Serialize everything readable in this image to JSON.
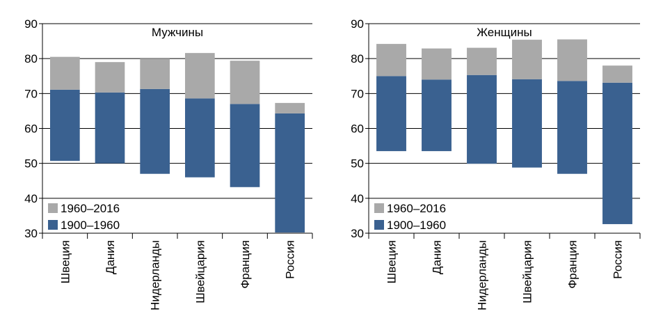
{
  "chart_data": [
    {
      "type": "bar",
      "stacked": "floating",
      "title": "Мужчины",
      "categories": [
        "Швеция",
        "Дания",
        "Нидерланды",
        "Швейцария",
        "Франция",
        "Россия"
      ],
      "ylim": [
        30,
        90
      ],
      "yticks": [
        30,
        40,
        50,
        60,
        70,
        80,
        90
      ],
      "legend_position": "bottom-left",
      "series": [
        {
          "name": "1900–1960",
          "color": "#3a6190",
          "from": [
            50.7,
            50.0,
            47.0,
            46.0,
            43.2,
            30.2
          ],
          "to": [
            71.1,
            70.3,
            71.3,
            68.6,
            67.0,
            64.3
          ]
        },
        {
          "name": "1960–2016",
          "color": "#a9a9a9",
          "from": [
            71.1,
            70.3,
            71.3,
            68.6,
            67.0,
            64.3
          ],
          "to": [
            80.5,
            79.0,
            80.0,
            81.6,
            79.4,
            67.3
          ]
        }
      ]
    },
    {
      "type": "bar",
      "stacked": "floating",
      "title": "Женщины",
      "categories": [
        "Швеция",
        "Дания",
        "Нидерланды",
        "Швейцария",
        "Франция",
        "Россия"
      ],
      "ylim": [
        30,
        90
      ],
      "yticks": [
        30,
        40,
        50,
        60,
        70,
        80,
        90
      ],
      "legend_position": "bottom-left",
      "series": [
        {
          "name": "1900–1960",
          "color": "#3a6190",
          "from": [
            53.5,
            53.5,
            49.9,
            48.8,
            47.0,
            32.6
          ],
          "to": [
            75.0,
            74.0,
            75.3,
            74.1,
            73.6,
            73.1
          ]
        },
        {
          "name": "1960–2016",
          "color": "#a9a9a9",
          "from": [
            75.0,
            74.0,
            75.3,
            74.1,
            73.6,
            73.1
          ],
          "to": [
            84.2,
            82.9,
            83.1,
            85.4,
            85.5,
            78.0
          ]
        }
      ]
    }
  ]
}
